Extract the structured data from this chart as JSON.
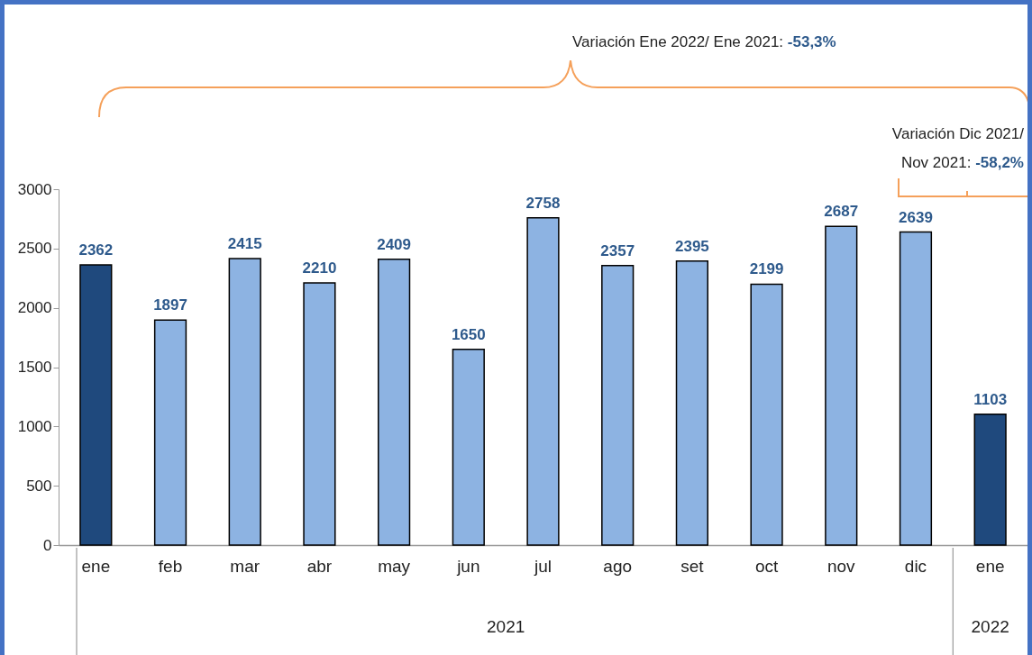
{
  "chart_data": {
    "type": "bar",
    "categories": [
      "ene",
      "feb",
      "mar",
      "abr",
      "may",
      "jun",
      "jul",
      "ago",
      "set",
      "oct",
      "nov",
      "dic",
      "ene"
    ],
    "values": [
      2362,
      1897,
      2415,
      2210,
      2409,
      1650,
      2758,
      2357,
      2395,
      2199,
      2687,
      2639,
      1103
    ],
    "colors": [
      "#1f497d",
      "#8db3e2",
      "#8db3e2",
      "#8db3e2",
      "#8db3e2",
      "#8db3e2",
      "#8db3e2",
      "#8db3e2",
      "#8db3e2",
      "#8db3e2",
      "#8db3e2",
      "#8db3e2",
      "#1f497d"
    ],
    "ylim": [
      0,
      3000
    ],
    "yticks": [
      0,
      500,
      1000,
      1500,
      2000,
      2500,
      3000
    ],
    "grid": false,
    "data_labels": true,
    "annotations": [
      "Variación Ene 2022/ Ene 2021: -53,3%",
      "Variación  Dic 2021/ Nov 2021: -58,2%",
      "2021",
      "2022"
    ]
  }
}
